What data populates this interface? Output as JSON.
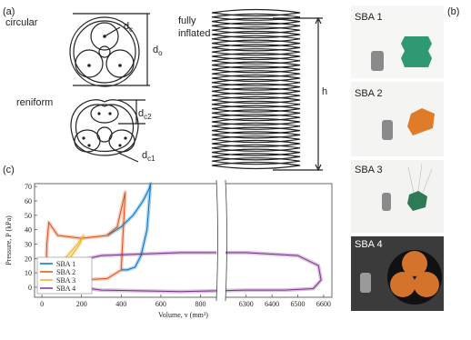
{
  "panel_a": {
    "label": "(a)",
    "circular": "circular",
    "reniform": "reniform",
    "fully_inflated": [
      "fully",
      "inflated"
    ],
    "h": "h",
    "dc": {
      "base": "d",
      "sub": "c"
    },
    "do": {
      "base": "d",
      "sub": "o"
    },
    "dc2": {
      "base": "d",
      "sub": "c2"
    },
    "dc1": {
      "base": "d",
      "sub": "c1"
    }
  },
  "panel_b": {
    "label": "(b)",
    "photos": [
      {
        "label": "SBA 1"
      },
      {
        "label": "SBA 2"
      },
      {
        "label": "SBA 3"
      },
      {
        "label": "SBA 4"
      }
    ]
  },
  "panel_c": {
    "label": "(c)"
  },
  "chart_data": {
    "type": "line",
    "xlabel": "Volume, v (mm³)",
    "ylabel": "Pressure, P (kPa)",
    "xlim": [
      -37,
      6632
    ],
    "x_break": [
      880,
      6220
    ],
    "xticks": [
      0,
      200,
      400,
      600,
      800,
      6300,
      6400,
      6500,
      6600
    ],
    "ylim": [
      -7,
      72
    ],
    "yticks": [
      0,
      10,
      20,
      30,
      40,
      50,
      60,
      70
    ],
    "legend": "lower left",
    "series": [
      {
        "name": "SBA 1",
        "color": "#0072bd",
        "x": [
          330,
          400,
          460,
          510,
          540,
          548,
          530,
          500,
          470,
          430,
          400
        ],
        "y": [
          36,
          42,
          50,
          60,
          68,
          72,
          40,
          22,
          14,
          12,
          12
        ]
      },
      {
        "name": "SBA 2",
        "color": "#d95319",
        "x": [
          20,
          25,
          35,
          80,
          200,
          330,
          380,
          410,
          420,
          400,
          330,
          200,
          100,
          40,
          20
        ],
        "y": [
          0,
          30,
          45,
          36,
          34,
          36,
          42,
          60,
          66,
          12,
          6,
          5,
          3,
          2,
          0
        ]
      },
      {
        "name": "SBA 3",
        "color": "#edb120",
        "x": [
          40,
          80,
          130,
          180,
          210,
          190,
          140,
          90,
          50,
          40
        ],
        "y": [
          5,
          14,
          22,
          30,
          36,
          30,
          20,
          12,
          6,
          5
        ]
      },
      {
        "name": "SBA 4",
        "color": "#7e2f8e",
        "x": [
          40,
          100,
          300,
          700,
          6300,
          6500,
          6580,
          6590,
          6560,
          6450,
          6300,
          700,
          300,
          80,
          40
        ],
        "y": [
          5,
          16,
          22,
          24,
          24,
          22,
          15,
          5,
          -1,
          -2,
          -2,
          -3,
          -2,
          2,
          5
        ]
      }
    ]
  }
}
